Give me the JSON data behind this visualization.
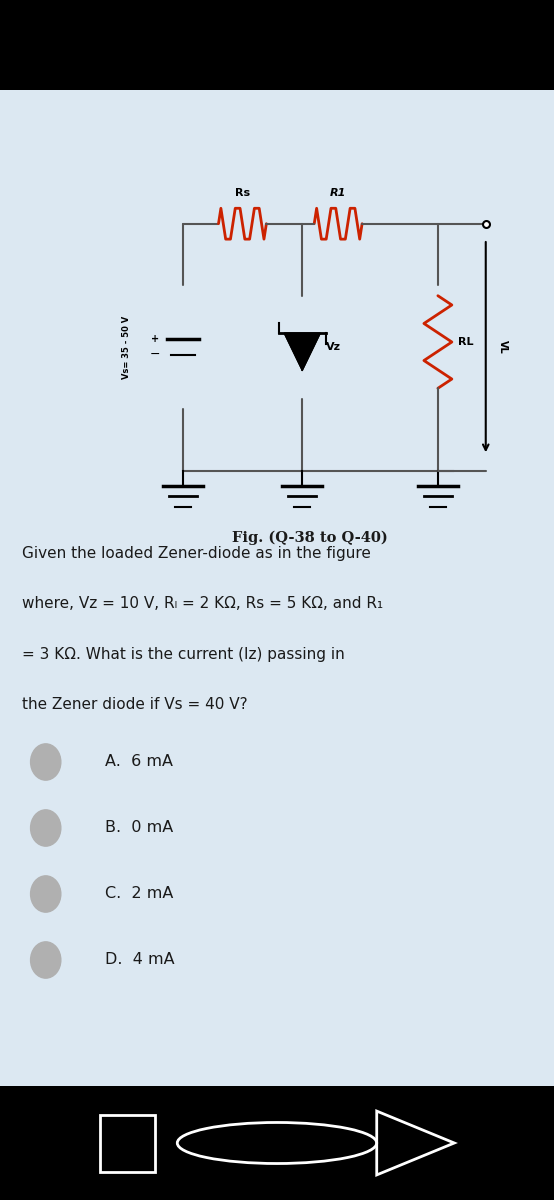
{
  "bg_outer": "#000000",
  "bg_card": "#dce8f2",
  "bg_circuit": "#f5f0e8",
  "text_color": "#1a1a1a",
  "q_line1": "Given the loaded Zener-diode as in the figure",
  "q_line2": "where, V₂ = 10 V, Rₗ = 2 KΩ, Rₛ = 5 KΩ, and R₁",
  "q_line3": "= 3 KΩ. What is the current (I₂) passing in",
  "q_line4": "the Zener diode if Vs = 40 V?",
  "q_line2_raw": "where, Vz = 10 V, R_L = 2 KΩ, Rs = 5 KΩ, and R1",
  "q_line3_raw": "= 3 KΩ. What is the current (Iz) passing in",
  "options": [
    "A.  6 mA",
    "B.  0 mA",
    "C.  2 mA",
    "D.  4 mA"
  ],
  "fig_caption": "Fig. (Q-38 to Q-40)",
  "wire_color": "#555555",
  "resistor_color": "#cc2200",
  "black": "#000000",
  "navbar_bg": "#000000",
  "radio_color": "#aaaaaa",
  "circuit_bg": "#f5ede0"
}
